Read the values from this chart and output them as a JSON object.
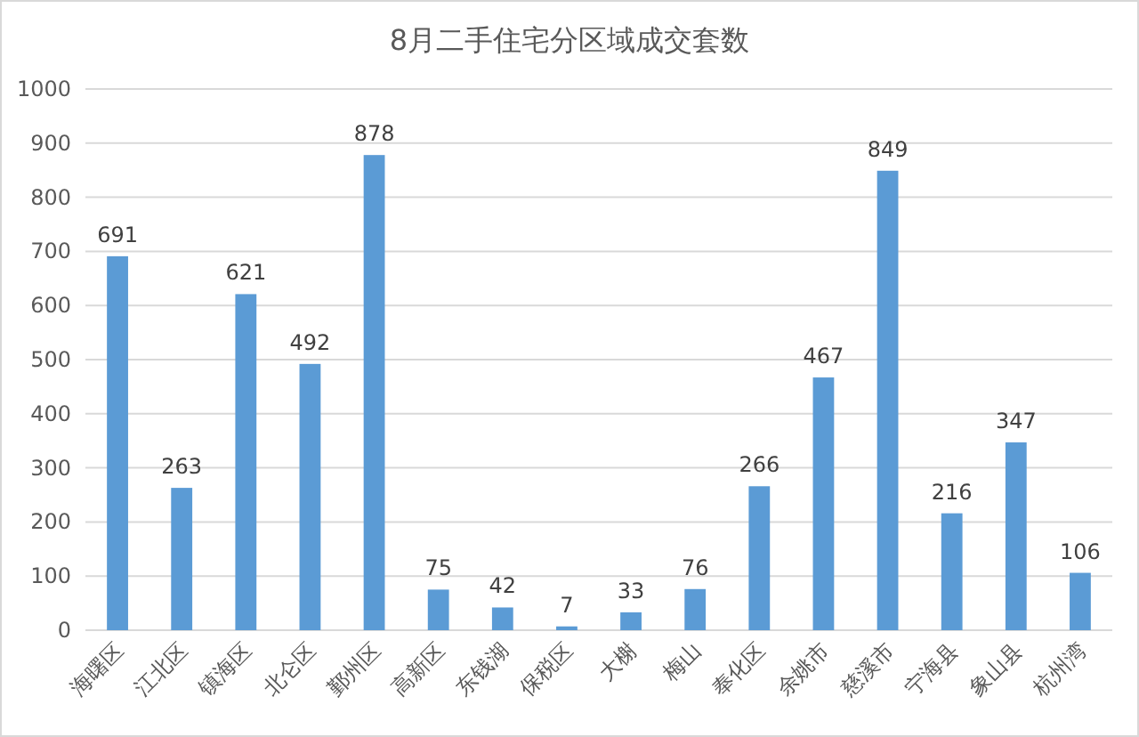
{
  "chart_data": {
    "type": "bar",
    "title": "8月二手住宅分区域成交套数",
    "categories": [
      "海曙区",
      "江北区",
      "镇海区",
      "北仑区",
      "鄞州区",
      "高新区",
      "东钱湖",
      "保税区",
      "大榭",
      "梅山",
      "奉化区",
      "余姚市",
      "慈溪市",
      "宁海县",
      "象山县",
      "杭州湾"
    ],
    "values": [
      691,
      263,
      621,
      492,
      878,
      75,
      42,
      7,
      33,
      76,
      266,
      467,
      849,
      216,
      347,
      106
    ],
    "color": "#5b9bd5",
    "ylim": [
      0,
      1000
    ],
    "yticks": [
      0,
      100,
      200,
      300,
      400,
      500,
      600,
      700,
      800,
      900,
      1000
    ],
    "grid": "y",
    "data_labels": true
  }
}
